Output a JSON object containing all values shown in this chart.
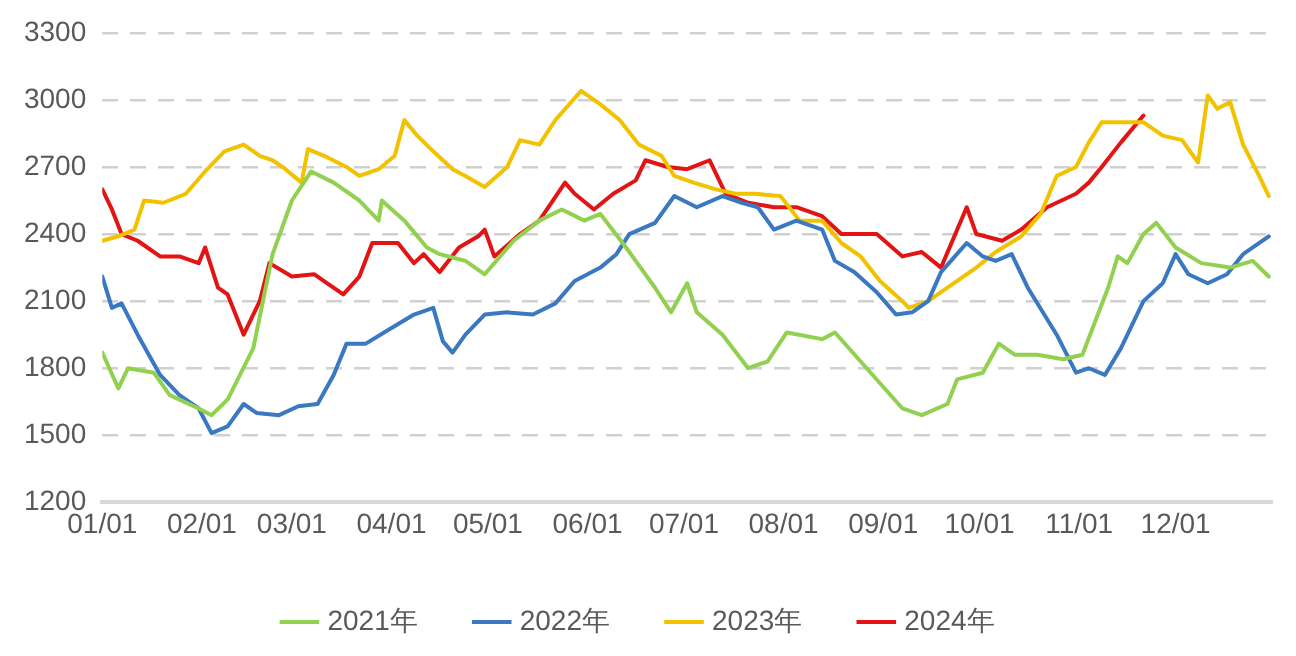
{
  "chart_data": {
    "type": "line",
    "xlim": [
      "--01-01",
      "--12-31"
    ],
    "xticks": [
      {
        "value": "--01-01",
        "label": "01/01"
      },
      {
        "value": "--02-01",
        "label": "02/01"
      },
      {
        "value": "--03-01",
        "label": "03/01"
      },
      {
        "value": "--04-01",
        "label": "04/01"
      },
      {
        "value": "--05-01",
        "label": "05/01"
      },
      {
        "value": "--06-01",
        "label": "06/01"
      },
      {
        "value": "--07-01",
        "label": "07/01"
      },
      {
        "value": "--08-01",
        "label": "08/01"
      },
      {
        "value": "--09-01",
        "label": "09/01"
      },
      {
        "value": "--10-01",
        "label": "10/01"
      },
      {
        "value": "--11-01",
        "label": "11/01"
      },
      {
        "value": "--12-01",
        "label": "12/01"
      }
    ],
    "ylim": [
      1200,
      3300
    ],
    "yticks": [
      1200,
      1500,
      1800,
      2100,
      2400,
      2700,
      3000,
      3300
    ],
    "grid": "y",
    "legend": "bottom",
    "marker": "none",
    "line_style": "solid",
    "series": [
      {
        "name": "2021年",
        "color": "#92d050",
        "x": [
          "--01-01",
          "--01-06",
          "--01-09",
          "--01-17",
          "--01-22",
          "--01-31",
          "--02-04",
          "--02-09",
          "--02-17",
          "--02-23",
          "--03-01",
          "--03-07",
          "--03-14",
          "--03-22",
          "--03-28",
          "--03-29",
          "--04-05",
          "--04-12",
          "--04-16",
          "--04-24",
          "--04-30",
          "--05-09",
          "--05-17",
          "--05-24",
          "--05-31",
          "--06-05",
          "--06-13",
          "--06-22",
          "--06-27",
          "--07-02",
          "--07-05",
          "--07-13",
          "--07-21",
          "--07-27",
          "--08-02",
          "--08-13",
          "--08-17",
          "--08-25",
          "--09-07",
          "--09-13",
          "--09-21",
          "--09-24",
          "--10-02",
          "--10-07",
          "--10-12",
          "--10-19",
          "--10-27",
          "--11-02",
          "--11-10",
          "--11-13",
          "--11-16",
          "--11-21",
          "--11-25",
          "--12-01",
          "--12-09",
          "--12-18",
          "--12-25",
          "--12-30"
        ],
        "values": [
          1870,
          1710,
          1800,
          1780,
          1680,
          1620,
          1590,
          1660,
          1890,
          2310,
          2550,
          2680,
          2630,
          2550,
          2460,
          2550,
          2460,
          2340,
          2310,
          2280,
          2220,
          2370,
          2460,
          2510,
          2460,
          2490,
          2340,
          2160,
          2050,
          2180,
          2050,
          1950,
          1800,
          1830,
          1960,
          1930,
          1960,
          1830,
          1620,
          1590,
          1640,
          1750,
          1780,
          1910,
          1860,
          1860,
          1840,
          1860,
          2160,
          2300,
          2270,
          2400,
          2450,
          2340,
          2270,
          2250,
          2280,
          2210
        ]
      },
      {
        "name": "2022年",
        "color": "#3a78c2",
        "x": [
          "--01-01",
          "--01-04",
          "--01-07",
          "--01-12",
          "--01-19",
          "--01-25",
          "--01-31",
          "--02-04",
          "--02-09",
          "--02-14",
          "--02-18",
          "--02-25",
          "--03-03",
          "--03-09",
          "--03-14",
          "--03-18",
          "--03-24",
          "--04-01",
          "--04-08",
          "--04-14",
          "--04-17",
          "--04-20",
          "--04-24",
          "--04-30",
          "--05-07",
          "--05-15",
          "--05-22",
          "--05-28",
          "--06-05",
          "--06-10",
          "--06-14",
          "--06-22",
          "--06-28",
          "--07-05",
          "--07-13",
          "--07-19",
          "--07-24",
          "--07-29",
          "--08-05",
          "--08-13",
          "--08-17",
          "--08-23",
          "--08-30",
          "--09-05",
          "--09-10",
          "--09-15",
          "--09-19",
          "--09-27",
          "--10-02",
          "--10-06",
          "--10-11",
          "--10-16",
          "--10-25",
          "--10-31",
          "--11-04",
          "--11-09",
          "--11-14",
          "--11-21",
          "--11-27",
          "--12-01",
          "--12-05",
          "--12-11",
          "--12-17",
          "--12-22",
          "--12-30"
        ],
        "values": [
          2210,
          2070,
          2090,
          1950,
          1770,
          1680,
          1620,
          1510,
          1540,
          1640,
          1600,
          1590,
          1630,
          1640,
          1770,
          1910,
          1910,
          1980,
          2040,
          2070,
          1920,
          1870,
          1950,
          2040,
          2050,
          2040,
          2090,
          2190,
          2250,
          2310,
          2400,
          2450,
          2570,
          2520,
          2570,
          2540,
          2520,
          2420,
          2460,
          2420,
          2280,
          2230,
          2140,
          2040,
          2050,
          2100,
          2230,
          2360,
          2300,
          2280,
          2310,
          2160,
          1950,
          1780,
          1800,
          1770,
          1890,
          2100,
          2180,
          2310,
          2220,
          2180,
          2220,
          2310,
          2390
        ]
      },
      {
        "name": "2023年",
        "color": "#f2c200",
        "x": [
          "--01-01",
          "--01-06",
          "--01-11",
          "--01-14",
          "--01-20",
          "--01-27",
          "--02-02",
          "--02-08",
          "--02-14",
          "--02-19",
          "--02-23",
          "--02-27",
          "--03-04",
          "--03-06",
          "--03-11",
          "--03-18",
          "--03-22",
          "--03-28",
          "--04-02",
          "--04-05",
          "--04-09",
          "--04-14",
          "--04-20",
          "--04-24",
          "--04-30",
          "--05-07",
          "--05-11",
          "--05-17",
          "--05-22",
          "--05-30",
          "--06-05",
          "--06-11",
          "--06-17",
          "--06-24",
          "--06-28",
          "--07-04",
          "--07-11",
          "--07-17",
          "--07-23",
          "--07-31",
          "--08-06",
          "--08-13",
          "--08-19",
          "--08-25",
          "--08-31",
          "--09-07",
          "--09-09",
          "--09-15",
          "--09-21",
          "--09-30",
          "--10-06",
          "--10-14",
          "--10-20",
          "--10-25",
          "--10-31",
          "--11-04",
          "--11-08",
          "--11-14",
          "--11-21",
          "--11-27",
          "--12-03",
          "--12-08",
          "--12-11",
          "--12-14",
          "--12-18",
          "--12-22",
          "--12-27",
          "--12-30"
        ],
        "values": [
          2370,
          2390,
          2420,
          2550,
          2540,
          2580,
          2680,
          2770,
          2800,
          2750,
          2730,
          2690,
          2630,
          2780,
          2750,
          2700,
          2660,
          2690,
          2750,
          2910,
          2840,
          2770,
          2690,
          2660,
          2610,
          2700,
          2820,
          2800,
          2910,
          3040,
          2980,
          2910,
          2800,
          2750,
          2660,
          2630,
          2600,
          2580,
          2580,
          2570,
          2460,
          2460,
          2360,
          2300,
          2190,
          2100,
          2070,
          2100,
          2160,
          2250,
          2320,
          2390,
          2490,
          2660,
          2700,
          2810,
          2900,
          2900,
          2900,
          2840,
          2820,
          2720,
          3020,
          2960,
          2990,
          2800,
          2660,
          2570
        ]
      },
      {
        "name": "2024年",
        "color": "#e31414",
        "x": [
          "--01-01",
          "--01-04",
          "--01-07",
          "--01-12",
          "--01-19",
          "--01-25",
          "--01-31",
          "--02-02",
          "--02-06",
          "--02-09",
          "--02-14",
          "--02-19",
          "--02-22",
          "--03-01",
          "--03-08",
          "--03-11",
          "--03-17",
          "--03-22",
          "--03-26",
          "--04-03",
          "--04-08",
          "--04-11",
          "--04-16",
          "--04-22",
          "--04-28",
          "--04-30",
          "--05-03",
          "--05-11",
          "--05-17",
          "--05-25",
          "--05-28",
          "--06-03",
          "--06-09",
          "--06-16",
          "--06-19",
          "--06-26",
          "--07-02",
          "--07-09",
          "--07-14",
          "--07-21",
          "--07-29",
          "--08-05",
          "--08-13",
          "--08-19",
          "--08-30",
          "--09-07",
          "--09-13",
          "--09-19",
          "--09-27",
          "--09-30",
          "--10-08",
          "--10-14",
          "--10-22",
          "--10-31",
          "--11-04",
          "--11-08",
          "--11-14",
          "--11-21"
        ],
        "values": [
          2600,
          2510,
          2400,
          2370,
          2300,
          2300,
          2270,
          2340,
          2160,
          2130,
          1950,
          2100,
          2270,
          2210,
          2220,
          2190,
          2130,
          2210,
          2360,
          2360,
          2270,
          2310,
          2230,
          2340,
          2390,
          2420,
          2300,
          2400,
          2460,
          2630,
          2580,
          2510,
          2580,
          2640,
          2730,
          2700,
          2690,
          2730,
          2580,
          2540,
          2520,
          2520,
          2480,
          2400,
          2400,
          2300,
          2320,
          2250,
          2520,
          2400,
          2370,
          2420,
          2520,
          2580,
          2630,
          2700,
          2810,
          2930
        ]
      }
    ]
  }
}
